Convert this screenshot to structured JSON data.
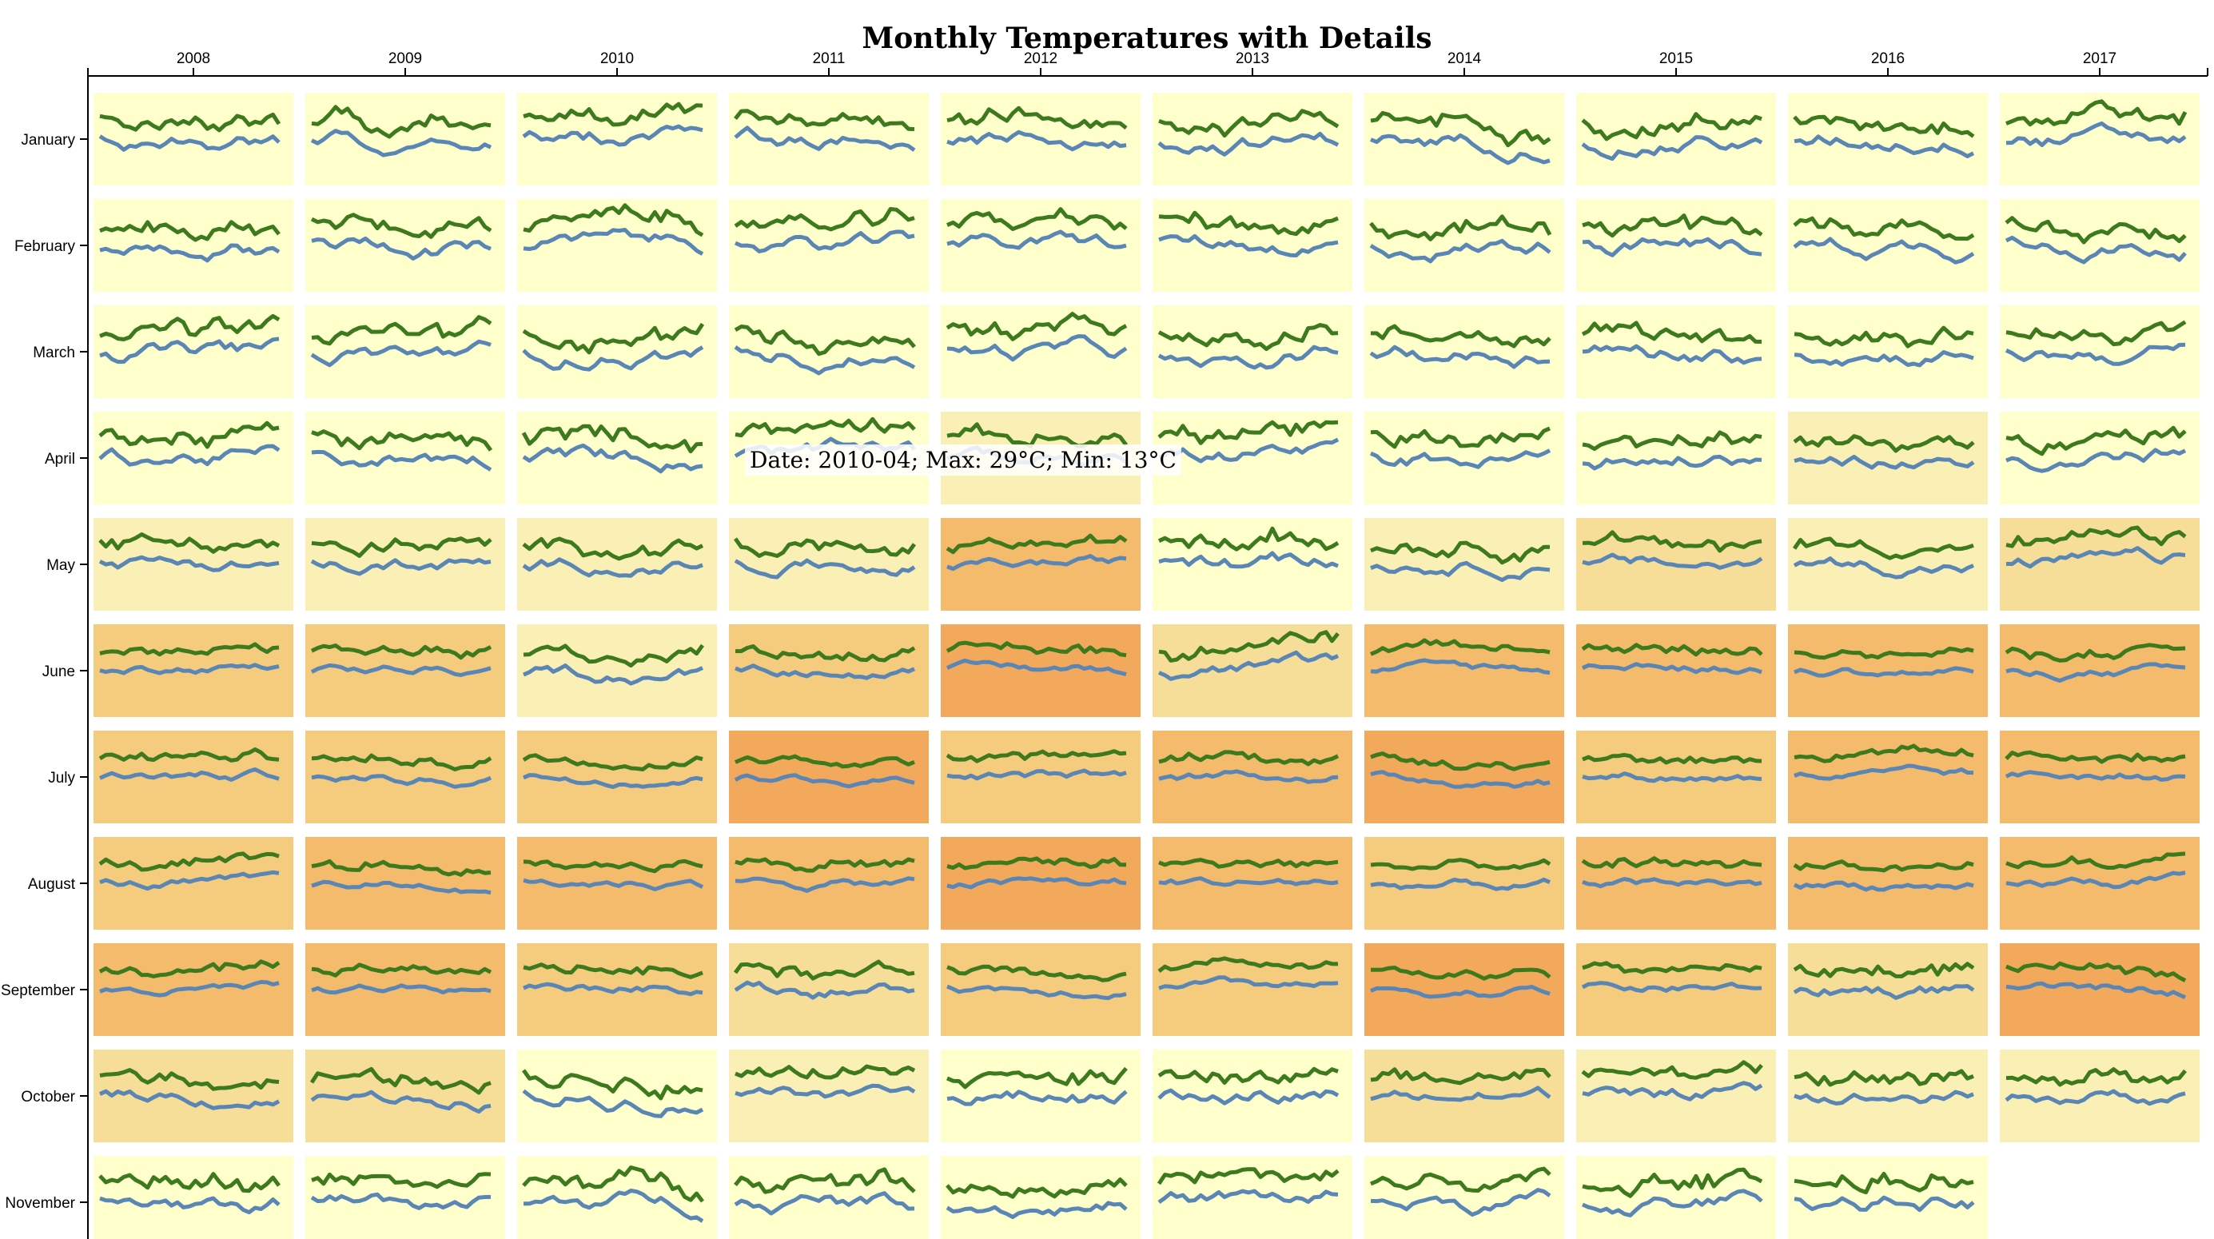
{
  "title": "Monthly Temperatures with Details",
  "tooltip": "Date: 2010-04; Max: 29°C; Min: 13°C",
  "colors": {
    "max_line": "#3d7a1e",
    "min_line": "#5a86b5",
    "axis": "#000000",
    "heat_scale": [
      "#ffffcc",
      "#faefb4",
      "#f6de99",
      "#f5cc7e",
      "#f4bb6c",
      "#f2a95c"
    ]
  },
  "chart_data": {
    "type": "heatmap",
    "title": "Monthly Temperatures with Details",
    "xlabel": "",
    "ylabel": "",
    "years": [
      "2008",
      "2009",
      "2010",
      "2011",
      "2012",
      "2013",
      "2014",
      "2015",
      "2016",
      "2017"
    ],
    "months": [
      "January",
      "February",
      "March",
      "April",
      "May",
      "June",
      "July",
      "August",
      "September",
      "October",
      "November"
    ],
    "series": [
      {
        "name": "Max"
      },
      {
        "name": "Min"
      }
    ],
    "cell_heat_level": [
      [
        0,
        0,
        0,
        0,
        0,
        0,
        0,
        0,
        0,
        0
      ],
      [
        0,
        0,
        0,
        0,
        0,
        0,
        0,
        0,
        0,
        0
      ],
      [
        0,
        0,
        0,
        0,
        0,
        0,
        0,
        0,
        0,
        0
      ],
      [
        0,
        0,
        0,
        0,
        1,
        0,
        0,
        0,
        1,
        0
      ],
      [
        1,
        1,
        1,
        1,
        4,
        0,
        1,
        2,
        1,
        2
      ],
      [
        3,
        3,
        1,
        3,
        5,
        2,
        4,
        4,
        4,
        4
      ],
      [
        3,
        3,
        3,
        5,
        3,
        4,
        5,
        3,
        4,
        4
      ],
      [
        3,
        4,
        4,
        4,
        5,
        4,
        3,
        4,
        4,
        4
      ],
      [
        4,
        4,
        3,
        2,
        3,
        3,
        5,
        3,
        2,
        5
      ],
      [
        2,
        2,
        0,
        1,
        0,
        0,
        2,
        1,
        1,
        1
      ],
      [
        0,
        0,
        0,
        0,
        0,
        0,
        0,
        0,
        0,
        null
      ]
    ]
  }
}
